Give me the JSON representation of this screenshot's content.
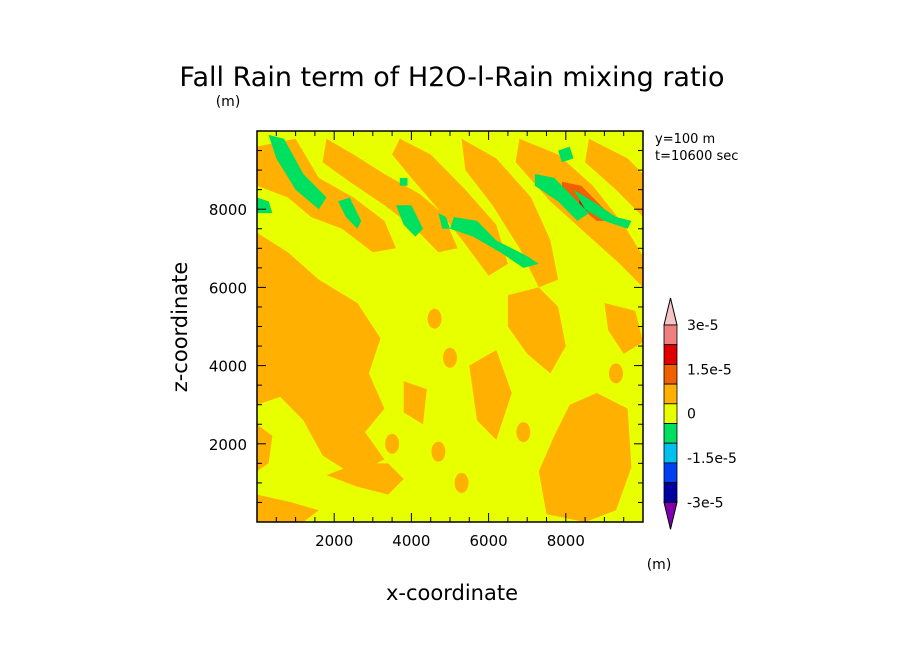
{
  "chart_data": {
    "type": "heatmap",
    "title": "Fall Rain term of H2O-l-Rain mixing ratio",
    "subtitle_units": "(m)",
    "info_lines": [
      "y=100 m",
      "t=10600 sec"
    ],
    "xlabel": "x-coordinate",
    "ylabel": "z-coordinate",
    "xlim": [
      0,
      10000
    ],
    "ylim": [
      0,
      10000
    ],
    "x_ticks": [
      2000,
      4000,
      6000,
      8000
    ],
    "y_ticks": [
      2000,
      4000,
      6000,
      8000
    ],
    "x_tick_labels": [
      "2000",
      "4000",
      "6000",
      "8000"
    ],
    "y_tick_labels": [
      "2000",
      "4000",
      "6000",
      "8000"
    ],
    "colorbar": {
      "units_label": "(m)",
      "levels_top_to_bottom": [
        "3e-5",
        "",
        "1.5e-5",
        "",
        "0",
        "",
        "-1.5e-5",
        "",
        "-3e-5"
      ],
      "labels": [
        {
          "text": "3e-5",
          "value": 3e-05
        },
        {
          "text": "1.5e-5",
          "value": 1.5e-05
        },
        {
          "text": "0",
          "value": 0
        },
        {
          "text": "-1.5e-5",
          "value": -1.5e-05
        },
        {
          "text": "-3e-5",
          "value": -3e-05
        }
      ],
      "colors_top_to_bottom": [
        "#f5c4c4",
        "#f08080",
        "#e00000",
        "#f06000",
        "#ffb000",
        "#e8ff00",
        "#00e060",
        "#00c0f0",
        "#0040f0",
        "#0000a0",
        "#8000b0"
      ]
    },
    "field": {
      "background_level": "0 to 7.5e-6",
      "background_color": "#e8ff00",
      "positive_band_color": "#ffb000",
      "strong_positive_color": "#f06000",
      "peak_color": "#e00000",
      "negative_band_color": "#00e060",
      "peak_location": {
        "x": 8500,
        "z": 8100
      }
    }
  }
}
